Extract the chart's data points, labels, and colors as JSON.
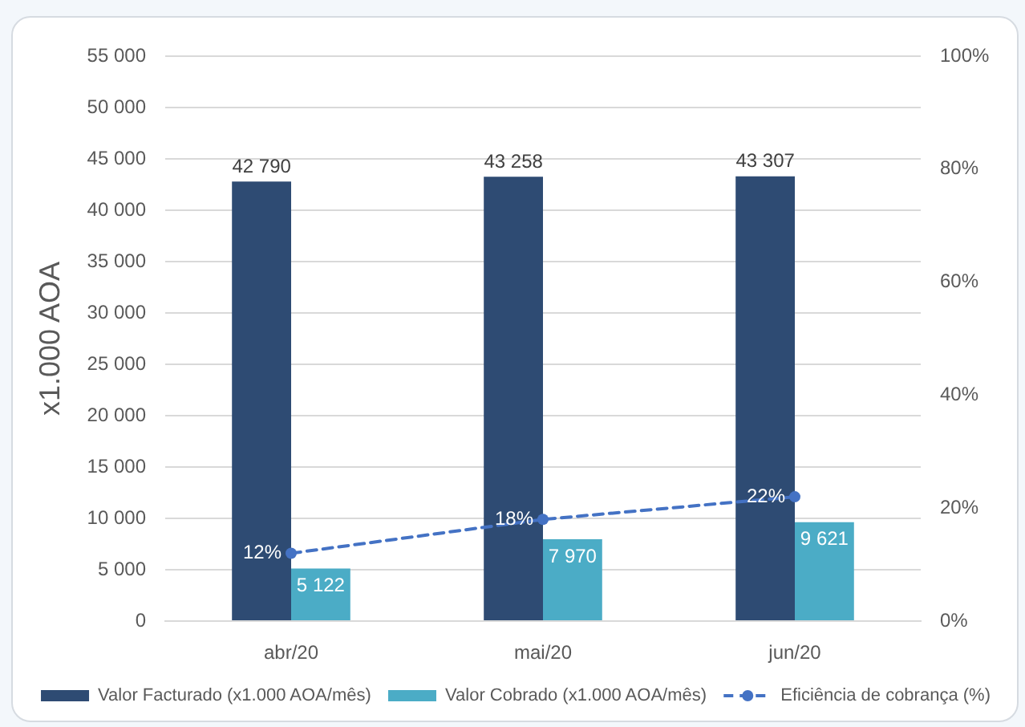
{
  "chart_data": {
    "type": "bar",
    "ylabel": "x1.000 AOA",
    "categories": [
      "abr/20",
      "mai/20",
      "jun/20"
    ],
    "series": [
      {
        "name": "Valor Facturado (x1.000 AOA/mês)",
        "color": "#2e4b73",
        "values": [
          42790,
          43258,
          43307
        ],
        "value_labels": [
          "42 790",
          "43 258",
          "43 307"
        ]
      },
      {
        "name": "Valor Cobrado (x1.000 AOA/mês)",
        "color": "#4bacc6",
        "values": [
          5122,
          7970,
          9621
        ],
        "value_labels": [
          "5 122",
          "7 970",
          "9 621"
        ]
      },
      {
        "name": "Eficiência de cobrança (%)",
        "type": "line",
        "axis": "y2",
        "color": "#4472c4",
        "values": [
          12,
          18,
          22
        ],
        "value_labels": [
          "12%",
          "18%",
          "22%"
        ],
        "marker": "circle",
        "line_style": "dashed"
      }
    ],
    "ylim": [
      0,
      55000
    ],
    "yticks": [
      {
        "value": 0,
        "label": "0"
      },
      {
        "value": 5000,
        "label": "5 000"
      },
      {
        "value": 10000,
        "label": "10 000"
      },
      {
        "value": 15000,
        "label": "15 000"
      },
      {
        "value": 20000,
        "label": "20 000"
      },
      {
        "value": 25000,
        "label": "25 000"
      },
      {
        "value": 30000,
        "label": "30 000"
      },
      {
        "value": 35000,
        "label": "35 000"
      },
      {
        "value": 40000,
        "label": "40 000"
      },
      {
        "value": 45000,
        "label": "45 000"
      },
      {
        "value": 50000,
        "label": "50 000"
      },
      {
        "value": 55000,
        "label": "55 000"
      }
    ],
    "y2lim": [
      0,
      100
    ],
    "y2ticks": [
      {
        "value": 0,
        "label": "0%"
      },
      {
        "value": 20,
        "label": "20%"
      },
      {
        "value": 40,
        "label": "40%"
      },
      {
        "value": 60,
        "label": "60%"
      },
      {
        "value": 80,
        "label": "80%"
      },
      {
        "value": 100,
        "label": "100%"
      }
    ],
    "grid": "y",
    "legend": "bottom"
  }
}
